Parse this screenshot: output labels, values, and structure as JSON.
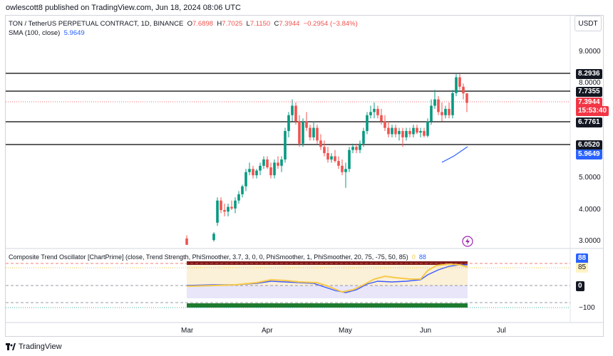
{
  "header": {
    "text": "owlescott8 published on TradingView.com, Jun 18, 2024 08:06 UTC"
  },
  "currency": "USDT",
  "legend": {
    "symbol": "TON / TetherUS PERPETUAL CONTRACT, 1D, BINANCE",
    "open_label": "O",
    "open": "7.6898",
    "high_label": "H",
    "high": "7.7025",
    "low_label": "L",
    "low": "7.1150",
    "close_label": "C",
    "close": "7.3944",
    "change": "−0.2954 (−3.84%)",
    "sma_label": "SMA (100, close)",
    "sma_value": "5.9649"
  },
  "oscillator": {
    "legend": "Composite Trend Oscillator [ChartPrime] (close, Trend Strength, PhiSmoother, 3.7, 3, 0, 0, PhiSmoother, 1, PhiSmoother, 20, 75, -75, 50, 85)",
    "val1": "0",
    "val2": "88",
    "axis": {
      "top_tag": "88",
      "second_tag": "85",
      "zero_tag": "0",
      "bottom": "−100"
    }
  },
  "price_axis": {
    "labels": [
      "9.0000",
      "8.0000",
      "6.0000",
      "5.0000",
      "4.0000",
      "3.0000"
    ],
    "levels": [
      {
        "value": "8.2936",
        "y": 8.2936
      },
      {
        "value": "7.7355",
        "y": 7.7355
      },
      {
        "value": "6.7761",
        "y": 6.7761
      },
      {
        "value": "6.0520",
        "y": 6.052
      }
    ],
    "last_price": "7.3944",
    "countdown": "15:53:40",
    "sma_tag": "5.9649"
  },
  "time_axis": {
    "labels": [
      "Mar",
      "Apr",
      "May",
      "Jun",
      "Jul"
    ]
  },
  "colors": {
    "up": "#089981",
    "down": "#ef5350",
    "sma": "#2962ff",
    "level": "#000000"
  },
  "footer": {
    "brand": "TradingView"
  },
  "icons": {
    "flash": "lightning-icon",
    "logo": "tradingview-logo-icon"
  }
}
